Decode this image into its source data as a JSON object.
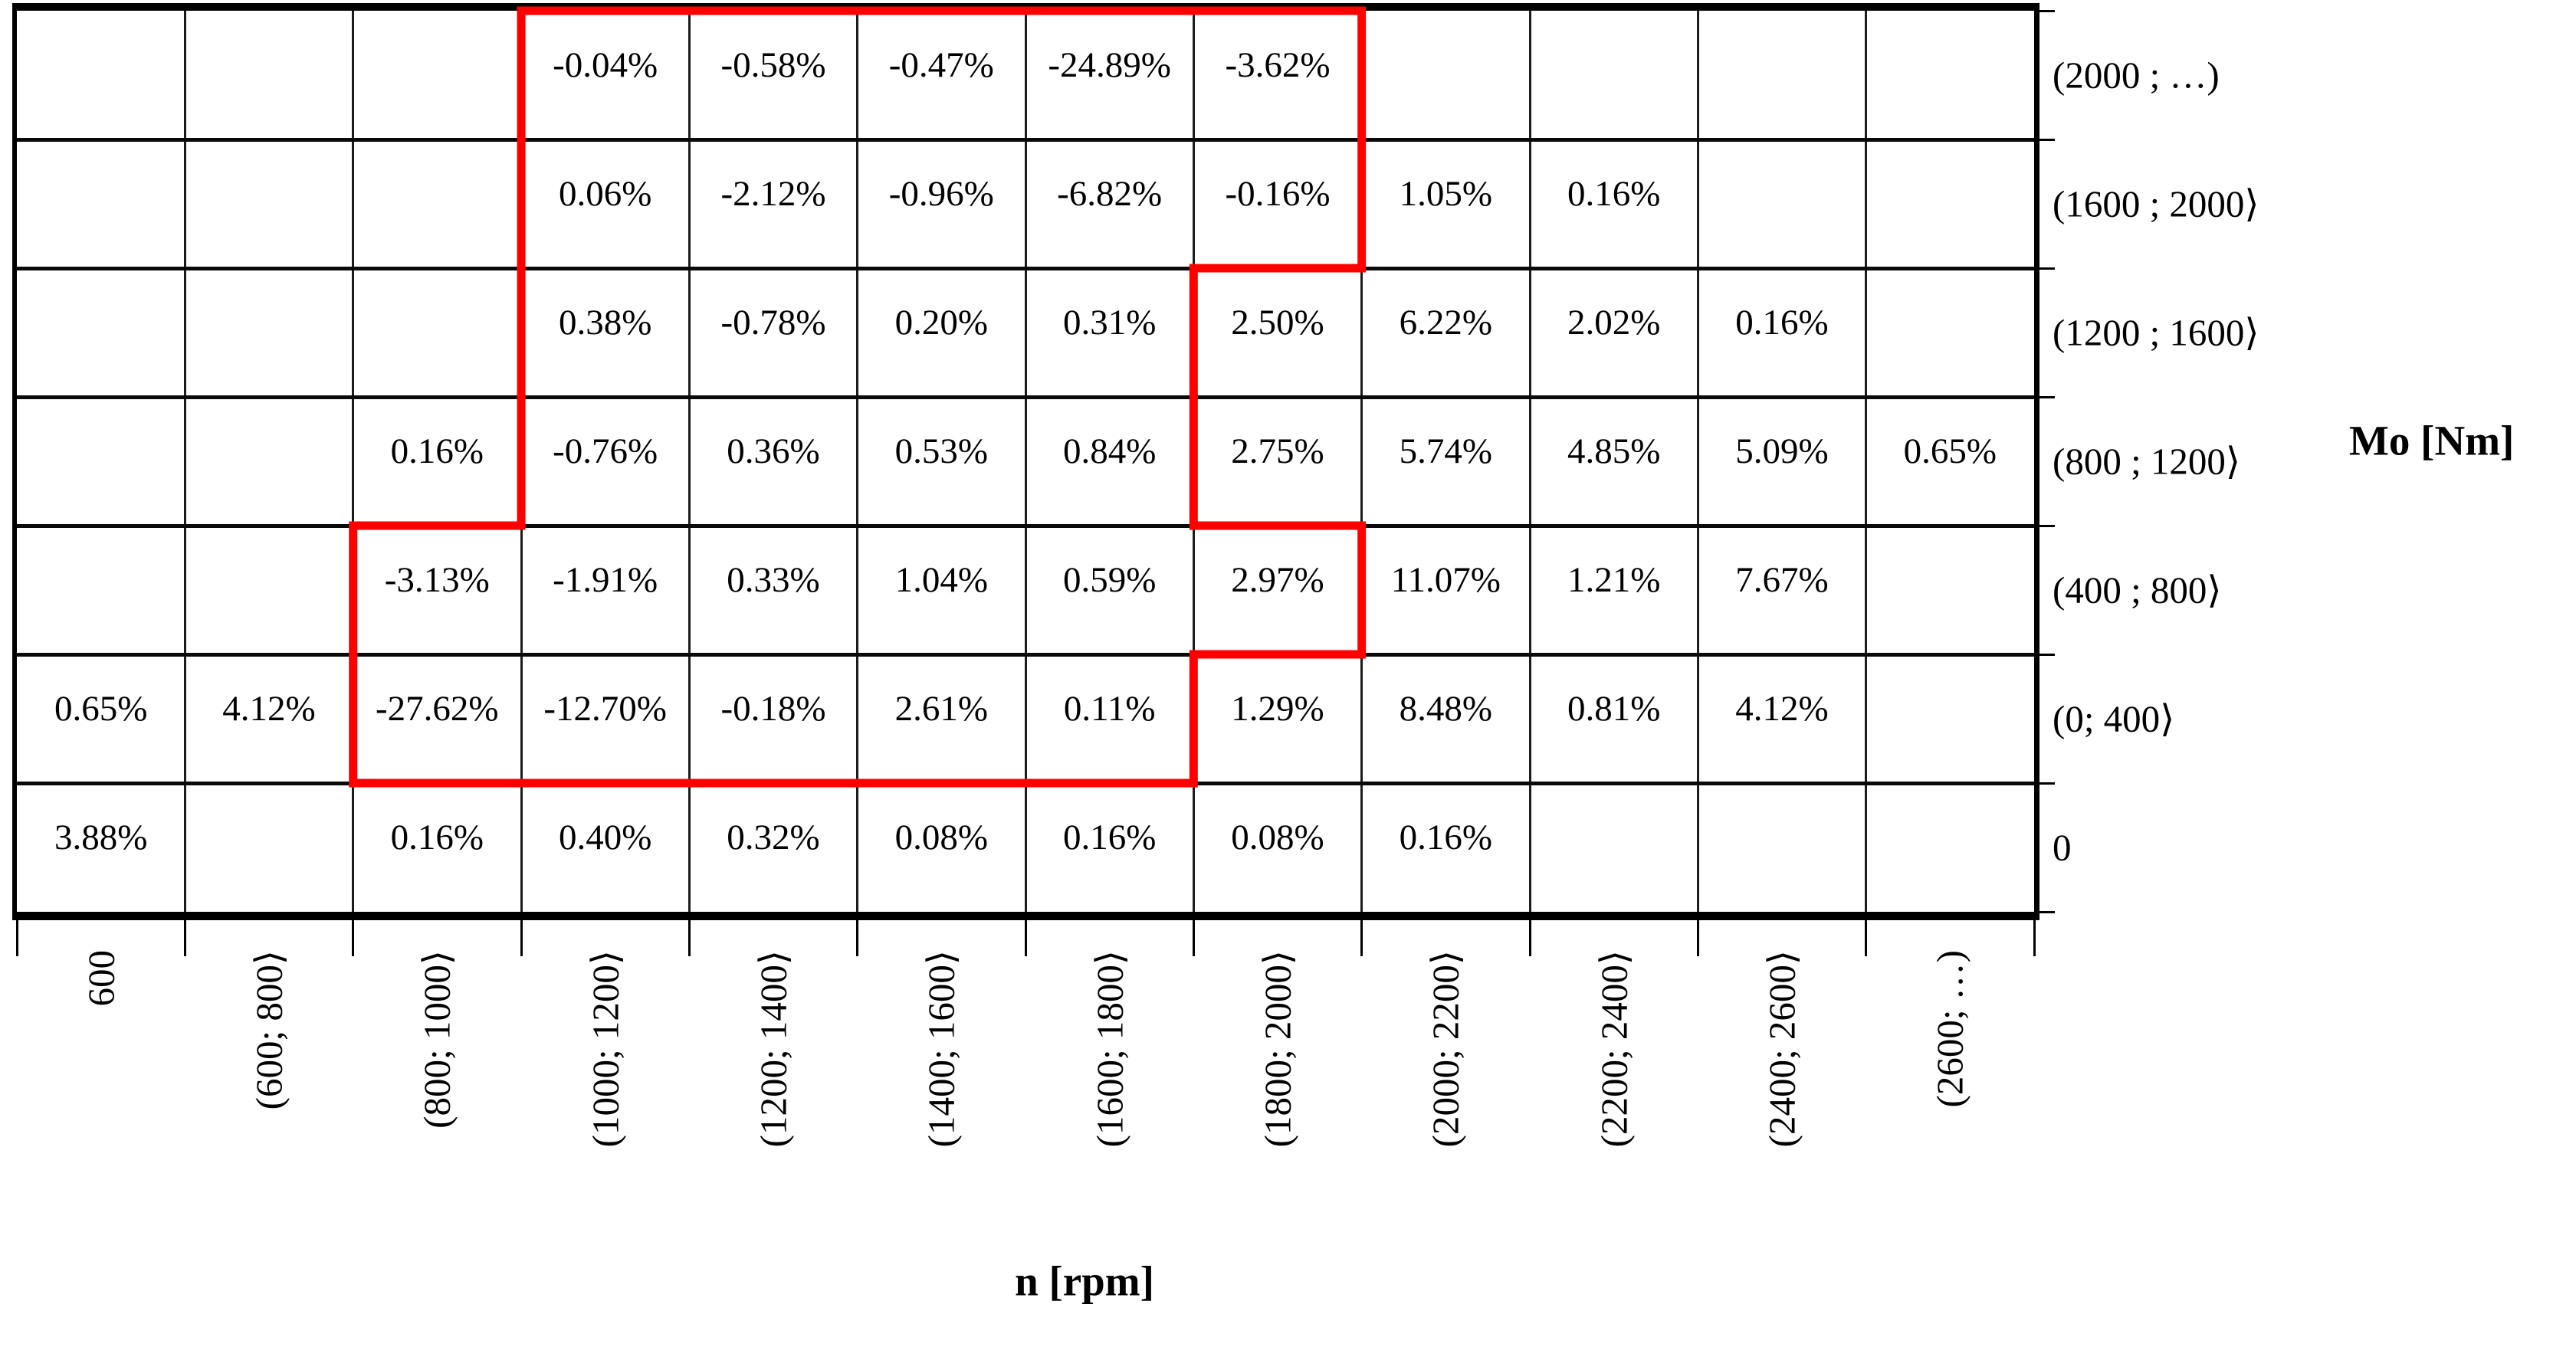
{
  "page": {
    "background_color": "#ffffff",
    "grid_line_color": "#000000"
  },
  "chart_data": {
    "type": "heatmap",
    "title": "",
    "xlabel": "n [rpm]",
    "ylabel": "Mo [Nm]",
    "grid": true,
    "x_categories": [
      "600",
      "(600; 800⟩",
      "(800; 1000⟩",
      "(1000; 1200⟩",
      "(1200; 1400⟩",
      "(1400; 1600⟩",
      "(1600; 1800⟩",
      "(1800; 2000⟩",
      "(2000; 2200⟩",
      "(2200; 2400⟩",
      "(2400; 2600⟩",
      "(2600; …)"
    ],
    "y_categories_top_to_bottom": [
      "(2000 ; …)",
      "(1600 ; 2000⟩",
      "(1200 ; 1600⟩",
      "(800 ; 1200⟩",
      "(400 ; 800⟩",
      "(0; 400⟩",
      "0"
    ],
    "values": [
      [
        null,
        null,
        null,
        "-0.04%",
        "-0.58%",
        "-0.47%",
        "-24.89%",
        "-3.62%",
        null,
        null,
        null,
        null
      ],
      [
        null,
        null,
        null,
        "0.06%",
        "-2.12%",
        "-0.96%",
        "-6.82%",
        "-0.16%",
        "1.05%",
        "0.16%",
        null,
        null
      ],
      [
        null,
        null,
        null,
        "0.38%",
        "-0.78%",
        "0.20%",
        "0.31%",
        "2.50%",
        "6.22%",
        "2.02%",
        "0.16%",
        null
      ],
      [
        null,
        null,
        "0.16%",
        "-0.76%",
        "0.36%",
        "0.53%",
        "0.84%",
        "2.75%",
        "5.74%",
        "4.85%",
        "5.09%",
        "0.65%"
      ],
      [
        null,
        null,
        "-3.13%",
        "-1.91%",
        "0.33%",
        "1.04%",
        "0.59%",
        "2.97%",
        "11.07%",
        "1.21%",
        "7.67%",
        null
      ],
      [
        "0.65%",
        "4.12%",
        "-27.62%",
        "-12.70%",
        "-0.18%",
        "2.61%",
        "0.11%",
        "1.29%",
        "8.48%",
        "0.81%",
        "4.12%",
        null
      ],
      [
        "3.88%",
        null,
        "0.16%",
        "0.40%",
        "0.32%",
        "0.08%",
        "0.16%",
        "0.08%",
        "0.16%",
        null,
        null,
        null
      ]
    ],
    "highlight": {
      "color": "#ff0000",
      "stroke_width": 11,
      "description": "Red stepped outline enclosing a subset of cells",
      "polygon_grid_vertices": [
        [
          3,
          0
        ],
        [
          8,
          0
        ],
        [
          8,
          2
        ],
        [
          7,
          2
        ],
        [
          7,
          4
        ],
        [
          8,
          4
        ],
        [
          8,
          5
        ],
        [
          7,
          5
        ],
        [
          7,
          6
        ],
        [
          2,
          6
        ],
        [
          2,
          4
        ],
        [
          3,
          4
        ]
      ]
    }
  }
}
